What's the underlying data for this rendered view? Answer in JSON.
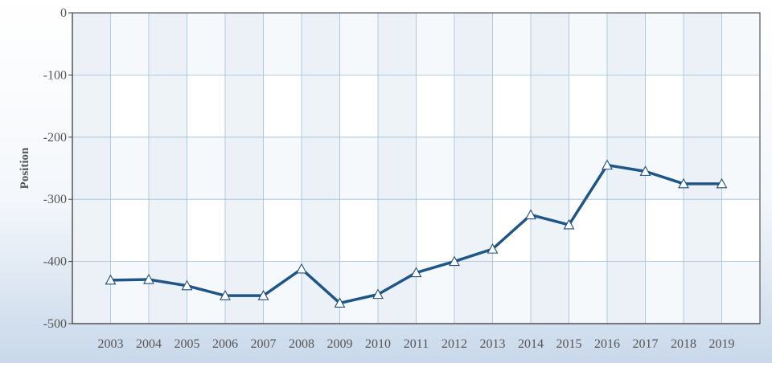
{
  "chart_data": {
    "type": "line",
    "ylabel": "Position",
    "xlabel": "",
    "ylim": [
      -500,
      0
    ],
    "yticks": [
      0,
      -100,
      -200,
      -300,
      -400,
      -500
    ],
    "grid": true,
    "categories": [
      "2003",
      "2004",
      "2005",
      "2006",
      "2007",
      "2008",
      "2009",
      "2010",
      "2011",
      "2012",
      "2013",
      "2014",
      "2015",
      "2016",
      "2017",
      "2018",
      "2019"
    ],
    "series": [
      {
        "values": [
          -430,
          -429,
          -439,
          -455,
          -455,
          -412,
          -467,
          -453,
          -418,
          -400,
          -380,
          -325,
          -341,
          -245,
          -255,
          -275,
          -275
        ],
        "color": "#1f5587",
        "marker": "triangle"
      }
    ]
  }
}
